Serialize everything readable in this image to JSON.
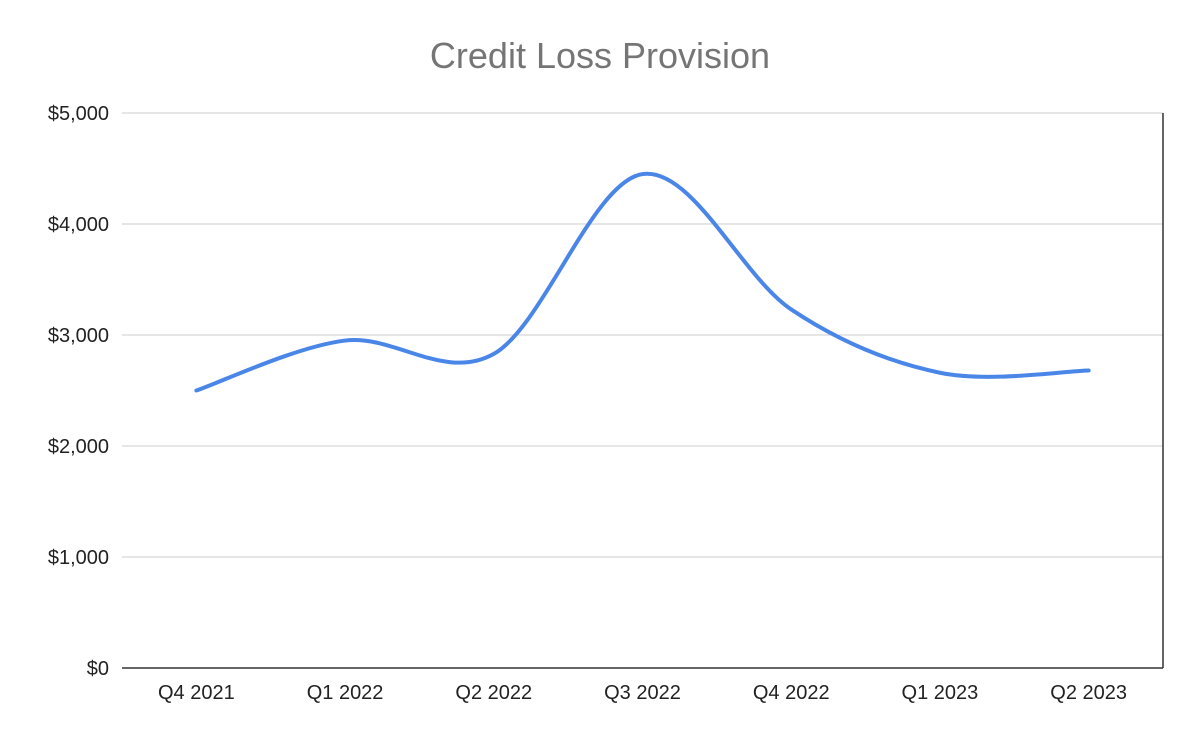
{
  "chart_data": {
    "type": "line",
    "title": "Credit Loss Provision",
    "xlabel": "",
    "ylabel": "",
    "categories": [
      "Q4 2021",
      "Q1 2022",
      "Q2 2022",
      "Q3 2022",
      "Q4 2022",
      "Q1 2023",
      "Q2 2023"
    ],
    "series": [
      {
        "values": [
          2500,
          2950,
          2830,
          4450,
          3230,
          2660,
          2680
        ],
        "color": "#4a86e8",
        "smooth": true
      }
    ],
    "ylim": [
      0,
      5000
    ],
    "yticks": [
      0,
      1000,
      2000,
      3000,
      4000,
      5000
    ],
    "ytick_labels": [
      "$0",
      "$1,000",
      "$2,000",
      "$3,000",
      "$4,000",
      "$5,000"
    ],
    "grid": true,
    "legend": "none"
  }
}
